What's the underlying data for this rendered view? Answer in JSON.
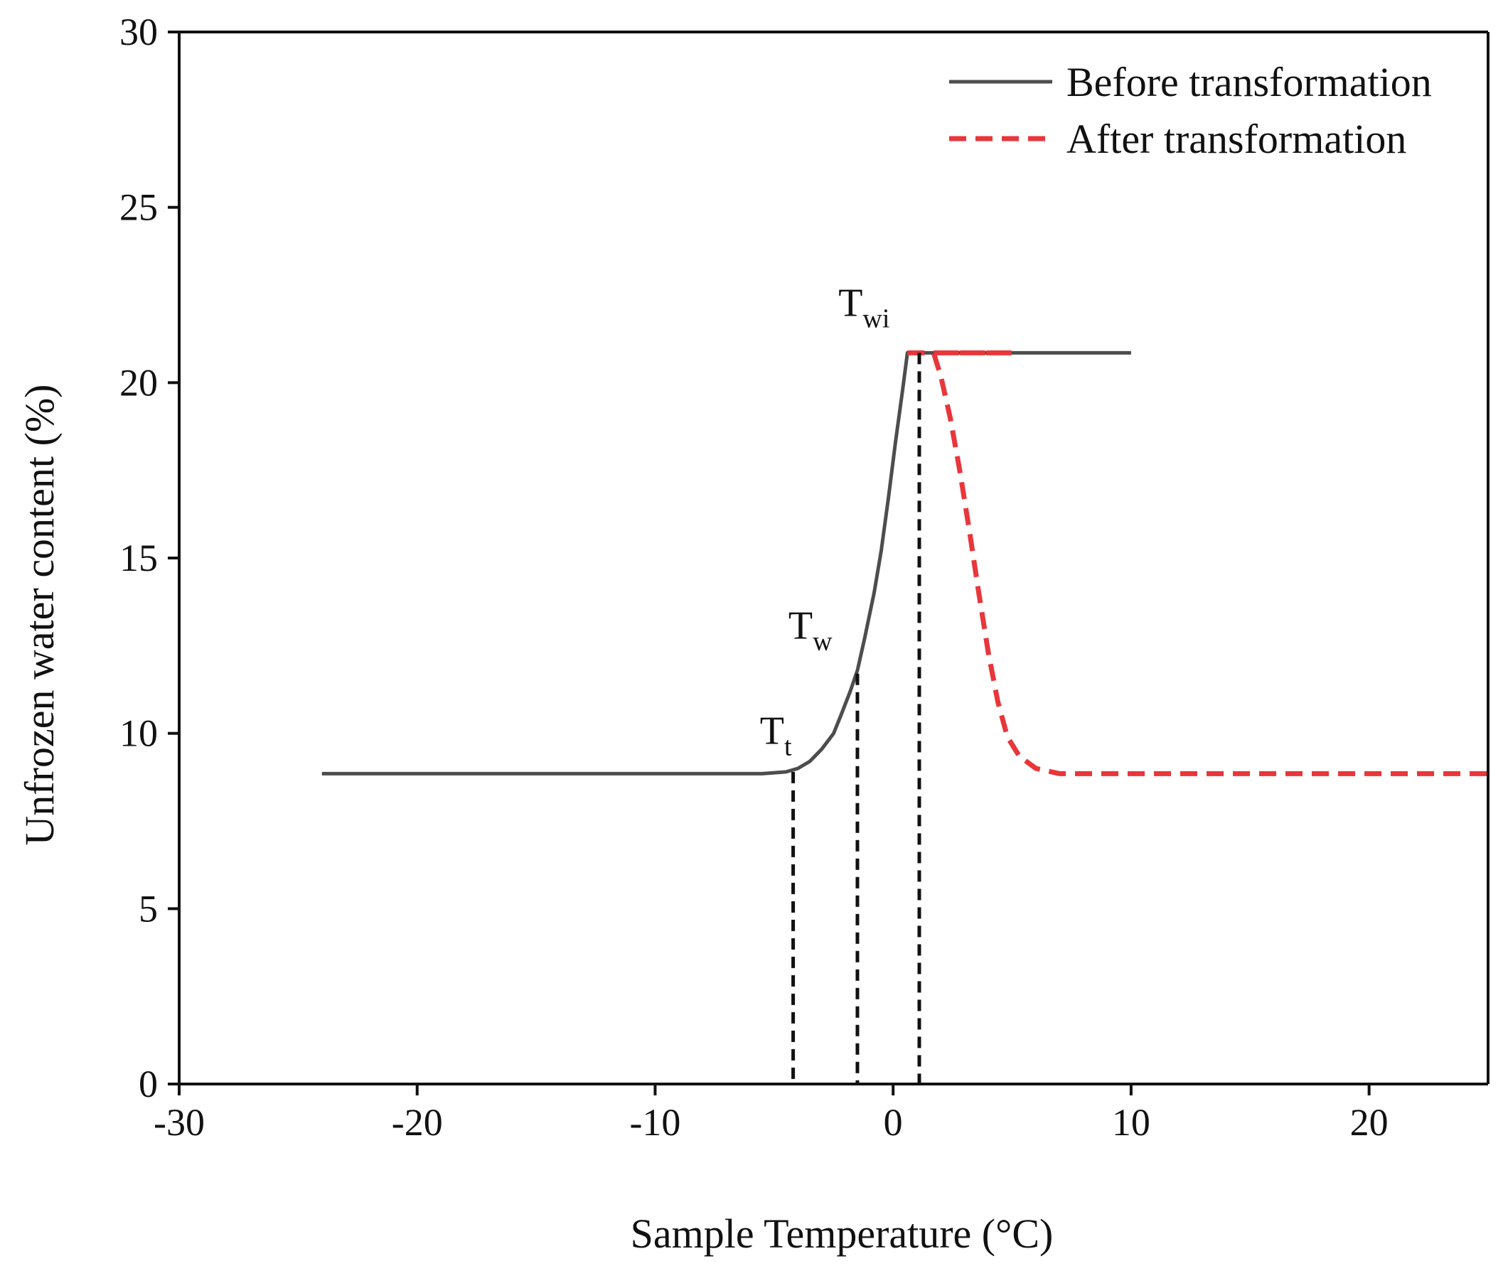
{
  "chart_data": {
    "type": "line",
    "title": "",
    "xlabel": "Sample Temperature (°C)",
    "ylabel": "Unfrozen water content (%)",
    "xlim": [
      -30,
      25
    ],
    "ylim": [
      0,
      30
    ],
    "xticks": [
      -30,
      -20,
      -10,
      0,
      10,
      20
    ],
    "yticks": [
      0,
      5,
      10,
      15,
      20,
      25,
      30
    ],
    "grid": false,
    "legend_position": "top-right",
    "series": [
      {
        "name": "Before transformation",
        "style": "solid",
        "color": "#4d4d4d",
        "points": [
          [
            -24,
            8.85
          ],
          [
            -5.5,
            8.85
          ],
          [
            -4.5,
            8.9
          ],
          [
            -4,
            9.0
          ],
          [
            -3.5,
            9.2
          ],
          [
            -3,
            9.55
          ],
          [
            -2.5,
            10.0
          ],
          [
            -2.2,
            10.5
          ],
          [
            -1.8,
            11.2
          ],
          [
            -1.5,
            11.8
          ],
          [
            -1.2,
            12.7
          ],
          [
            -0.8,
            14.0
          ],
          [
            -0.5,
            15.2
          ],
          [
            -0.2,
            16.7
          ],
          [
            0.1,
            18.3
          ],
          [
            0.4,
            19.8
          ],
          [
            0.6,
            20.85
          ],
          [
            10,
            20.85
          ]
        ]
      },
      {
        "name": "After transformation",
        "style": "dashed",
        "color": "#e8363a",
        "points": [
          [
            0.6,
            20.85
          ],
          [
            5,
            20.85
          ],
          [
            1.7,
            20.85
          ],
          [
            2.0,
            20.2
          ],
          [
            2.4,
            19.0
          ],
          [
            2.8,
            17.5
          ],
          [
            3.2,
            15.8
          ],
          [
            3.6,
            14.0
          ],
          [
            4.0,
            12.3
          ],
          [
            4.4,
            10.9
          ],
          [
            4.8,
            9.9
          ],
          [
            5.3,
            9.35
          ],
          [
            6.0,
            9.0
          ],
          [
            7.0,
            8.85
          ],
          [
            8,
            8.85
          ],
          [
            25,
            8.85
          ]
        ]
      }
    ],
    "vertical_markers": [
      {
        "x": -4.2,
        "y_top": 8.9,
        "color": "#111111"
      },
      {
        "x": -1.5,
        "y_top": 11.7,
        "color": "#111111"
      },
      {
        "x": 1.1,
        "y_top": 20.85,
        "color": "#111111"
      }
    ],
    "annotations": [
      {
        "main": "T",
        "sub": "t",
        "x": -5.6,
        "y": 9.7
      },
      {
        "main": "T",
        "sub": "w",
        "x": -4.4,
        "y": 12.7
      },
      {
        "main": "T",
        "sub": "wi",
        "x": -2.3,
        "y": 21.9
      }
    ]
  }
}
